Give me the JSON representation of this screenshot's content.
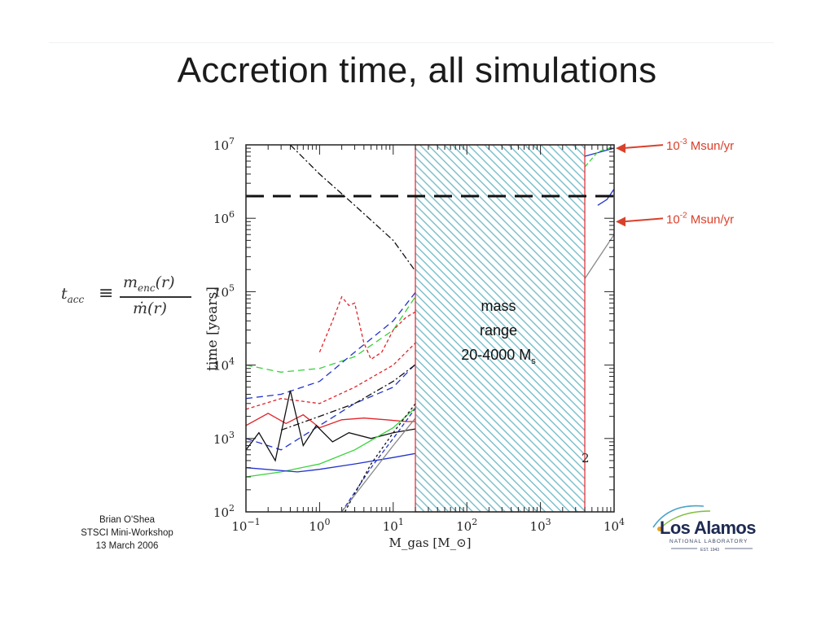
{
  "slide": {
    "title": "Accretion time, all simulations",
    "credit": [
      "Brian O'Shea",
      "STSCI Mini-Workshop",
      "13 March 2006"
    ],
    "logo": {
      "name": "Los Alamos",
      "subtitle": "NATIONAL LABORATORY",
      "est": "EST. 1943"
    },
    "formula": "t_acc ≡ m_enc(r) / ṁ(r)"
  },
  "chart_data": {
    "type": "line",
    "xlabel": "M_gas [M_⊙]",
    "ylabel": "time [years]",
    "xscale": "log",
    "yscale": "log",
    "xlim": [
      0.1,
      10000
    ],
    "ylim": [
      100,
      10000000
    ],
    "x_tick_labels": [
      {
        "value": 0.1,
        "base": "10",
        "exp": "−1"
      },
      {
        "value": 1,
        "base": "10",
        "exp": "0"
      },
      {
        "value": 10,
        "base": "10",
        "exp": "1"
      },
      {
        "value": 100,
        "base": "10",
        "exp": "2"
      },
      {
        "value": 1000,
        "base": "10",
        "exp": "3"
      },
      {
        "value": 10000,
        "base": "10",
        "exp": "4"
      }
    ],
    "y_tick_labels": [
      {
        "value": 100,
        "base": "10",
        "exp": "2"
      },
      {
        "value": 1000,
        "base": "10",
        "exp": "3"
      },
      {
        "value": 10000,
        "base": "10",
        "exp": "4"
      },
      {
        "value": 100000,
        "base": "10",
        "exp": "5"
      },
      {
        "value": 1000000,
        "base": "10",
        "exp": "6"
      },
      {
        "value": 10000000,
        "base": "10",
        "exp": "7"
      }
    ],
    "grid": false,
    "colors": {
      "red": "#e0242a",
      "green": "#37d23a",
      "blue": "#2233cc",
      "black": "#111111",
      "gray": "#888888",
      "accent": "#d9412b",
      "hatch": "#7fc1cc"
    },
    "shaded_region": {
      "x": [
        20,
        4000
      ],
      "label_lines": [
        "mass",
        "range"
      ],
      "label_range": "20-4000 M",
      "label_sub": "s"
    },
    "reference_line": {
      "y": 2000000,
      "style": "dashed",
      "color": "#111111"
    },
    "annotations": [
      {
        "text": "10",
        "sup": "-3",
        "suffix": " Msun/yr",
        "y": 9000000
      },
      {
        "text": "10",
        "sup": "-2",
        "suffix": " Msun/yr",
        "y": 900000
      }
    ],
    "panel_number": "2",
    "series": [
      {
        "color": "#111111",
        "dash": "8,3,2,3",
        "points": [
          [
            0.4,
            10000000
          ],
          [
            1,
            4000000
          ],
          [
            3,
            1500000
          ],
          [
            10,
            500000
          ],
          [
            25,
            140000
          ]
        ]
      },
      {
        "color": "#37d23a",
        "dash": "8,5",
        "points": [
          [
            0.1,
            10000
          ],
          [
            0.3,
            8000
          ],
          [
            1,
            9000
          ],
          [
            3,
            13000
          ],
          [
            10,
            30000
          ],
          [
            25,
            120000
          ]
        ]
      },
      {
        "color": "#2233cc",
        "dash": "8,5",
        "points": [
          [
            0.1,
            3500
          ],
          [
            0.3,
            4000
          ],
          [
            1,
            6000
          ],
          [
            3,
            15000
          ],
          [
            10,
            40000
          ],
          [
            25,
            130000
          ]
        ]
      },
      {
        "color": "#e0242a",
        "dash": "4,3",
        "points": [
          [
            1,
            15000
          ],
          [
            1.5,
            40000
          ],
          [
            2,
            85000
          ],
          [
            2.5,
            65000
          ],
          [
            3,
            70000
          ],
          [
            4,
            20000
          ],
          [
            5,
            12000
          ],
          [
            7,
            15000
          ],
          [
            10,
            30000
          ],
          [
            15,
            45000
          ],
          [
            25,
            60000
          ]
        ]
      },
      {
        "color": "#e0242a",
        "dash": "4,3",
        "points": [
          [
            0.1,
            2500
          ],
          [
            0.3,
            3500
          ],
          [
            1,
            3000
          ],
          [
            3,
            5000
          ],
          [
            10,
            10000
          ],
          [
            25,
            25000
          ]
        ]
      },
      {
        "color": "#2233cc",
        "dash": "8,5",
        "points": [
          [
            0.1,
            1000
          ],
          [
            0.3,
            700
          ],
          [
            1,
            1500
          ],
          [
            3,
            3000
          ],
          [
            10,
            5000
          ],
          [
            25,
            13000
          ]
        ]
      },
      {
        "color": "#111111",
        "dash": "8,3,2,3",
        "points": [
          [
            0.3,
            1300
          ],
          [
            1,
            2000
          ],
          [
            3,
            3000
          ],
          [
            10,
            6000
          ],
          [
            25,
            12000
          ]
        ]
      },
      {
        "color": "#e0242a",
        "dash": "",
        "points": [
          [
            0.1,
            1500
          ],
          [
            0.2,
            2200
          ],
          [
            0.35,
            1600
          ],
          [
            0.6,
            2100
          ],
          [
            1,
            1400
          ],
          [
            2,
            1800
          ],
          [
            4,
            1900
          ],
          [
            8,
            1800
          ],
          [
            15,
            1700
          ],
          [
            25,
            1700
          ]
        ]
      },
      {
        "color": "#111111",
        "dash": "",
        "points": [
          [
            0.1,
            700
          ],
          [
            0.15,
            1200
          ],
          [
            0.25,
            500
          ],
          [
            0.4,
            4500
          ],
          [
            0.6,
            800
          ],
          [
            0.9,
            1500
          ],
          [
            1.5,
            900
          ],
          [
            2.5,
            1200
          ],
          [
            5,
            1000
          ],
          [
            10,
            1200
          ],
          [
            25,
            1400
          ]
        ]
      },
      {
        "color": "#37d23a",
        "dash": "",
        "points": [
          [
            0.1,
            300
          ],
          [
            0.3,
            350
          ],
          [
            1,
            450
          ],
          [
            3,
            700
          ],
          [
            10,
            1400
          ],
          [
            25,
            3200
          ]
        ]
      },
      {
        "color": "#2233cc",
        "dash": "",
        "points": [
          [
            0.1,
            400
          ],
          [
            0.5,
            350
          ],
          [
            1,
            380
          ],
          [
            3,
            450
          ],
          [
            10,
            550
          ],
          [
            25,
            650
          ]
        ]
      },
      {
        "color": "#2233cc",
        "dash": "5,3",
        "points": [
          [
            2,
            100
          ],
          [
            5,
            400
          ],
          [
            10,
            1000
          ],
          [
            25,
            3500
          ]
        ]
      },
      {
        "color": "#111111",
        "dash": "3,3",
        "points": [
          [
            2.2,
            100
          ],
          [
            5,
            450
          ],
          [
            10,
            1200
          ],
          [
            25,
            4000
          ]
        ]
      },
      {
        "color": "#888888",
        "dash": "",
        "points": [
          [
            2,
            100
          ],
          [
            10,
            800
          ],
          [
            25,
            2500
          ]
        ]
      },
      {
        "color": "#2233cc",
        "dash": "",
        "points": [
          [
            4000,
            7000000
          ],
          [
            10000,
            9000000
          ]
        ]
      },
      {
        "color": "#37d23a",
        "dash": "6,3",
        "points": [
          [
            4000,
            5000000
          ],
          [
            6000,
            8000000
          ],
          [
            10000,
            9500000
          ]
        ]
      },
      {
        "color": "#2233cc",
        "dash": "",
        "points": [
          [
            6000,
            1500000
          ],
          [
            8000,
            1800000
          ],
          [
            10000,
            2500000
          ]
        ]
      },
      {
        "color": "#888888",
        "dash": "",
        "points": [
          [
            4000,
            150000
          ],
          [
            10000,
            600000
          ]
        ]
      }
    ]
  }
}
